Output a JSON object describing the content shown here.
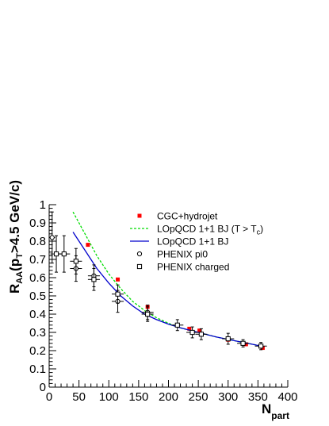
{
  "chart_data": {
    "type": "scatter",
    "title": "",
    "xlabel": {
      "main": "N",
      "sub": "part"
    },
    "ylabel": {
      "main": "R",
      "sub": "AA",
      "rest": "(p",
      "sub2": "T",
      "tail": ">4.5 GeV/c)"
    },
    "xlim": [
      0,
      400
    ],
    "ylim": [
      0,
      1
    ],
    "x_ticks": [
      "0",
      "50",
      "100",
      "150",
      "200",
      "250",
      "300",
      "350",
      "400"
    ],
    "y_ticks": [
      "0",
      "0.1",
      "0.2",
      "0.3",
      "0.4",
      "0.5",
      "0.6",
      "0.7",
      "0.8",
      "0.9",
      "1"
    ],
    "grid": false,
    "legend_position": "top-right",
    "legend": [
      {
        "key": "cgc",
        "label": "CGC+hydrojet",
        "label_sub": ""
      },
      {
        "key": "green",
        "label": "LOpQCD 1+1 BJ (T > T",
        "label_sub": "c",
        "label_tail": ")"
      },
      {
        "key": "blue",
        "label": "LOpQCD 1+1 BJ",
        "label_sub": ""
      },
      {
        "key": "pi0",
        "label": "PHENIX pi0",
        "label_sub": ""
      },
      {
        "key": "charged",
        "label": "PHENIX charged",
        "label_sub": ""
      }
    ],
    "colors": {
      "cgc": "#ff0000",
      "green": "#00dd00",
      "blue": "#0000cc",
      "markers": "#000000"
    },
    "series": [
      {
        "key": "cgc",
        "name": "CGC+hydrojet",
        "kind": "marker-square-filled",
        "points": [
          [
            65,
            0.78
          ],
          [
            115,
            0.59
          ],
          [
            165,
            0.44
          ],
          [
            235,
            0.32
          ],
          [
            252,
            0.31
          ],
          [
            300,
            0.26
          ],
          [
            330,
            0.235
          ],
          [
            358,
            0.215
          ]
        ]
      },
      {
        "key": "green",
        "name": "LOpQCD 1+1 BJ (T > Tc)",
        "kind": "line-dashed",
        "points": [
          [
            40,
            0.96
          ],
          [
            60,
            0.84
          ],
          [
            80,
            0.72
          ],
          [
            100,
            0.62
          ],
          [
            120,
            0.54
          ],
          [
            140,
            0.47
          ],
          [
            160,
            0.42
          ],
          [
            180,
            0.38
          ],
          [
            200,
            0.35
          ],
          [
            220,
            0.325
          ],
          [
            250,
            0.3
          ],
          [
            280,
            0.275
          ],
          [
            310,
            0.255
          ],
          [
            340,
            0.235
          ],
          [
            355,
            0.225
          ]
        ]
      },
      {
        "key": "blue",
        "name": "LOpQCD 1+1 BJ",
        "kind": "line-solid",
        "points": [
          [
            40,
            0.85
          ],
          [
            60,
            0.75
          ],
          [
            80,
            0.65
          ],
          [
            100,
            0.57
          ],
          [
            120,
            0.5
          ],
          [
            140,
            0.445
          ],
          [
            160,
            0.4
          ],
          [
            180,
            0.37
          ],
          [
            200,
            0.345
          ],
          [
            220,
            0.325
          ],
          [
            250,
            0.3
          ],
          [
            280,
            0.275
          ],
          [
            310,
            0.255
          ],
          [
            340,
            0.235
          ],
          [
            355,
            0.225
          ]
        ]
      },
      {
        "key": "pi0",
        "name": "PHENIX pi0",
        "kind": "marker-circle-open",
        "points": [
          {
            "x": 5,
            "y": 0.82,
            "xerr": 5,
            "yerr": 0.14
          },
          {
            "x": 45,
            "y": 0.65,
            "xerr": 10,
            "yerr": 0.07
          },
          {
            "x": 75,
            "y": 0.61,
            "xerr": 10,
            "yerr": 0.06
          },
          {
            "x": 115,
            "y": 0.47,
            "xerr": 10,
            "yerr": 0.06
          },
          {
            "x": 165,
            "y": 0.41,
            "xerr": 10,
            "yerr": 0.04
          }
        ]
      },
      {
        "key": "charged",
        "name": "PHENIX charged",
        "kind": "marker-square-open",
        "points": [
          {
            "x": 12,
            "y": 0.73,
            "xerr": 10,
            "yerr": 0.1
          },
          {
            "x": 25,
            "y": 0.73,
            "xerr": 10,
            "yerr": 0.1
          },
          {
            "x": 45,
            "y": 0.69,
            "xerr": 10,
            "yerr": 0.07
          },
          {
            "x": 75,
            "y": 0.59,
            "xerr": 10,
            "yerr": 0.06
          },
          {
            "x": 115,
            "y": 0.51,
            "xerr": 10,
            "yerr": 0.05
          },
          {
            "x": 165,
            "y": 0.4,
            "xerr": 10,
            "yerr": 0.04
          },
          {
            "x": 215,
            "y": 0.34,
            "xerr": 10,
            "yerr": 0.03
          },
          {
            "x": 240,
            "y": 0.3,
            "xerr": 10,
            "yerr": 0.03
          },
          {
            "x": 255,
            "y": 0.29,
            "xerr": 10,
            "yerr": 0.03
          },
          {
            "x": 300,
            "y": 0.265,
            "xerr": 10,
            "yerr": 0.03
          },
          {
            "x": 325,
            "y": 0.24,
            "xerr": 10,
            "yerr": 0.02
          },
          {
            "x": 355,
            "y": 0.225,
            "xerr": 10,
            "yerr": 0.02
          }
        ]
      }
    ]
  }
}
